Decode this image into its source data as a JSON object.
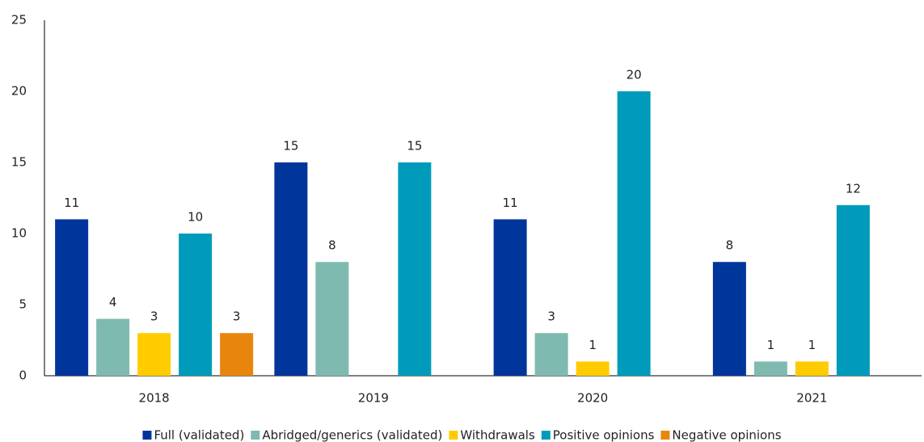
{
  "chart_data": {
    "type": "bar",
    "categories": [
      "2018",
      "2019",
      "2020",
      "2021"
    ],
    "series": [
      {
        "name": "Full (validated)",
        "color": "#00359c",
        "values": [
          11,
          15,
          11,
          8
        ]
      },
      {
        "name": "Abridged/generics (validated)",
        "color": "#7fbab0",
        "values": [
          4,
          8,
          3,
          1
        ]
      },
      {
        "name": "Withdrawals",
        "color": "#ffcc00",
        "values": [
          3,
          null,
          1,
          1
        ]
      },
      {
        "name": "Positive opinions",
        "color": "#009bbb",
        "values": [
          10,
          15,
          20,
          12
        ]
      },
      {
        "name": "Negative opinions",
        "color": "#e8850c",
        "values": [
          3,
          null,
          null,
          null
        ]
      }
    ],
    "ylim": [
      0,
      25
    ],
    "yticks": [
      0,
      5,
      10,
      15,
      20,
      25
    ],
    "grid": false,
    "legend": "bottom"
  }
}
